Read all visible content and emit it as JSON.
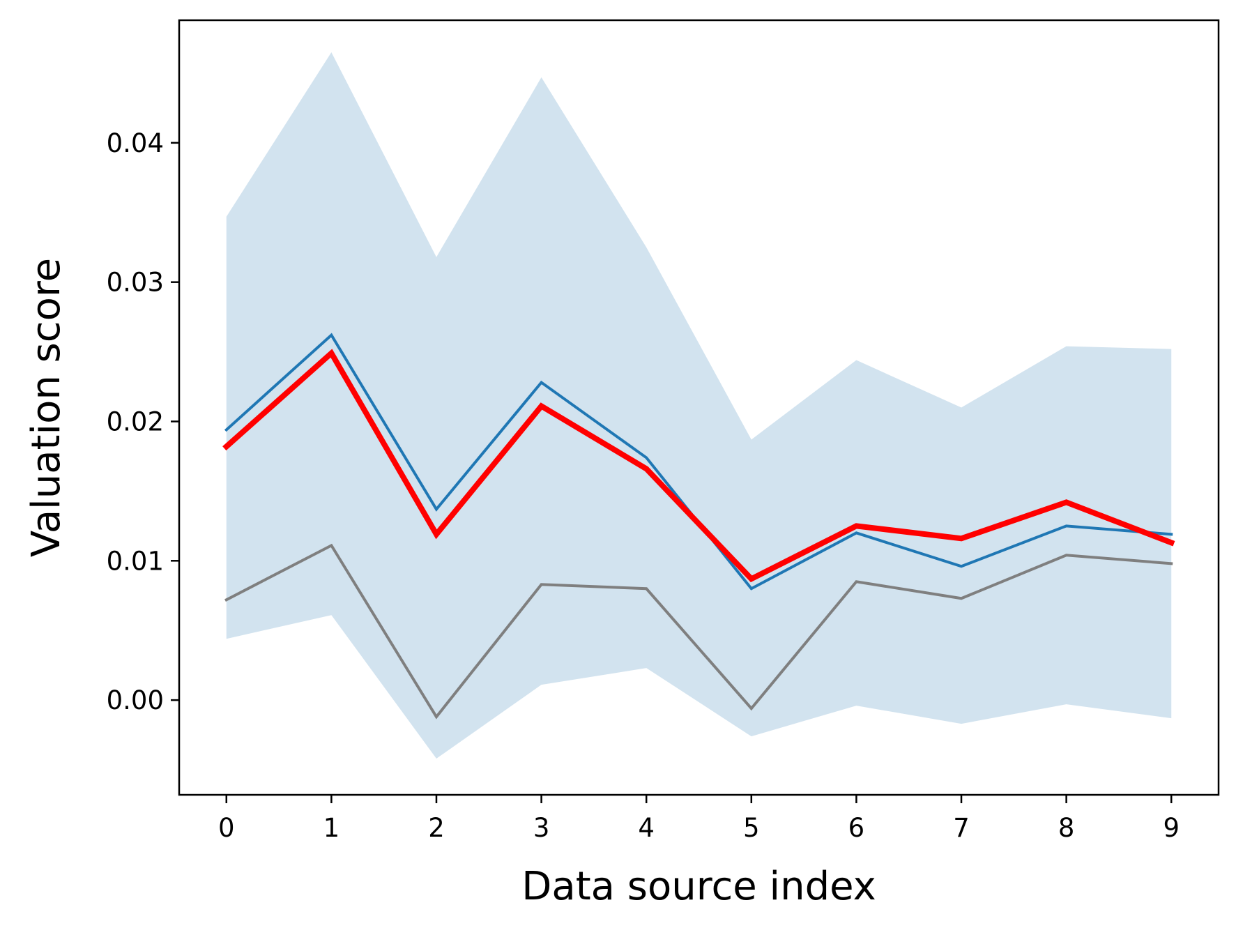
{
  "chart_data": {
    "type": "line",
    "title": "",
    "xlabel": "Data source index",
    "ylabel": "Valuation score",
    "x": [
      0,
      1,
      2,
      3,
      4,
      5,
      6,
      7,
      8,
      9
    ],
    "xticks": [
      "0",
      "1",
      "2",
      "3",
      "4",
      "5",
      "6",
      "7",
      "8",
      "9"
    ],
    "yticks": [
      "0.00",
      "0.01",
      "0.02",
      "0.03",
      "0.04"
    ],
    "ytick_values": [
      0.0,
      0.01,
      0.02,
      0.03,
      0.04
    ],
    "xlim": [
      -0.45,
      9.45
    ],
    "ylim": [
      -0.0068,
      0.0488
    ],
    "grid": false,
    "legend": "none",
    "band": {
      "color": "#d2e3ef",
      "lower": [
        0.0044,
        0.0061,
        -0.0042,
        0.0011,
        0.0023,
        -0.0026,
        -0.0004,
        -0.0017,
        -0.0003,
        -0.0013
      ],
      "upper": [
        0.0347,
        0.0465,
        0.0318,
        0.0447,
        0.0325,
        0.0187,
        0.0244,
        0.021,
        0.0254,
        0.0252
      ]
    },
    "series": [
      {
        "color": "#1f77b4",
        "width": 4,
        "values": [
          0.0194,
          0.0262,
          0.0137,
          0.0228,
          0.0174,
          0.008,
          0.012,
          0.0096,
          0.0125,
          0.0119
        ]
      },
      {
        "color": "#7f7f7f",
        "width": 4,
        "values": [
          0.0072,
          0.0111,
          -0.0012,
          0.0083,
          0.008,
          -0.0006,
          0.0085,
          0.0073,
          0.0104,
          0.0098
        ]
      },
      {
        "color": "#ff0000",
        "width": 8,
        "values": [
          0.0182,
          0.0249,
          0.0119,
          0.0211,
          0.0166,
          0.0087,
          0.0125,
          0.0116,
          0.0142,
          0.0113
        ]
      }
    ]
  }
}
